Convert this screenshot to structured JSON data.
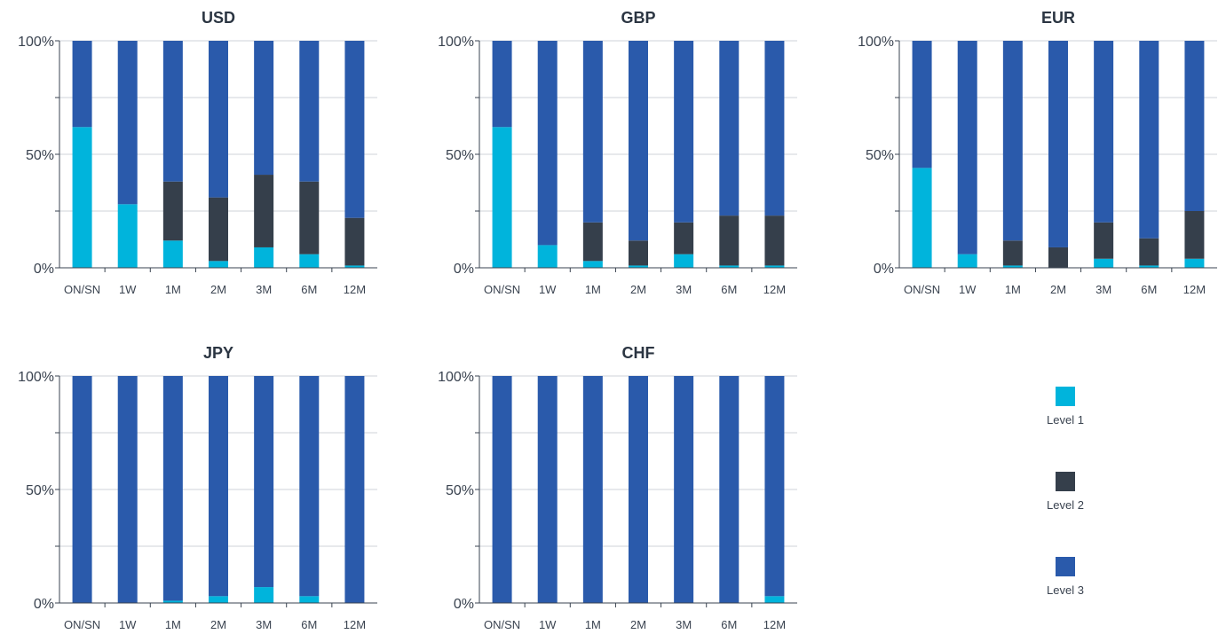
{
  "colors": {
    "level1": "#00b4dc",
    "level2": "#353f4b",
    "level3": "#2a5aab"
  },
  "legend": [
    {
      "label": "Level 1",
      "color_key": "level1"
    },
    {
      "label": "Level 2",
      "color_key": "level2"
    },
    {
      "label": "Level 3",
      "color_key": "level3"
    }
  ],
  "chart_data": [
    {
      "type": "bar",
      "stacked": true,
      "title": "USD",
      "categories": [
        "ON/SN",
        "1W",
        "1M",
        "2M",
        "3M",
        "6M",
        "12M"
      ],
      "ylim": [
        0,
        100
      ],
      "yticks": [
        "0%",
        "50%",
        "100%"
      ],
      "series": [
        {
          "name": "Level 1",
          "values": [
            62,
            28,
            12,
            3,
            9,
            6,
            1
          ]
        },
        {
          "name": "Level 2",
          "values": [
            0,
            0,
            26,
            28,
            32,
            32,
            21
          ]
        },
        {
          "name": "Level 3",
          "values": [
            38,
            72,
            62,
            69,
            59,
            62,
            78
          ]
        }
      ]
    },
    {
      "type": "bar",
      "stacked": true,
      "title": "GBP",
      "categories": [
        "ON/SN",
        "1W",
        "1M",
        "2M",
        "3M",
        "6M",
        "12M"
      ],
      "ylim": [
        0,
        100
      ],
      "yticks": [
        "0%",
        "50%",
        "100%"
      ],
      "series": [
        {
          "name": "Level 1",
          "values": [
            62,
            10,
            3,
            1,
            6,
            1,
            1
          ]
        },
        {
          "name": "Level 2",
          "values": [
            0,
            0,
            17,
            11,
            14,
            22,
            22
          ]
        },
        {
          "name": "Level 3",
          "values": [
            38,
            90,
            80,
            88,
            80,
            77,
            77
          ]
        }
      ]
    },
    {
      "type": "bar",
      "stacked": true,
      "title": "EUR",
      "categories": [
        "ON/SN",
        "1W",
        "1M",
        "2M",
        "3M",
        "6M",
        "12M"
      ],
      "ylim": [
        0,
        100
      ],
      "yticks": [
        "0%",
        "50%",
        "100%"
      ],
      "series": [
        {
          "name": "Level 1",
          "values": [
            44,
            6,
            1,
            0,
            4,
            1,
            4
          ]
        },
        {
          "name": "Level 2",
          "values": [
            0,
            0,
            11,
            9,
            16,
            12,
            21
          ]
        },
        {
          "name": "Level 3",
          "values": [
            56,
            94,
            88,
            91,
            80,
            87,
            75
          ]
        }
      ]
    },
    {
      "type": "bar",
      "stacked": true,
      "title": "JPY",
      "categories": [
        "ON/SN",
        "1W",
        "1M",
        "2M",
        "3M",
        "6M",
        "12M"
      ],
      "ylim": [
        0,
        100
      ],
      "yticks": [
        "0%",
        "50%",
        "100%"
      ],
      "series": [
        {
          "name": "Level 1",
          "values": [
            0,
            0,
            1,
            3,
            7,
            3,
            0
          ]
        },
        {
          "name": "Level 2",
          "values": [
            0,
            0,
            0,
            0,
            0,
            0,
            0
          ]
        },
        {
          "name": "Level 3",
          "values": [
            100,
            100,
            99,
            97,
            93,
            97,
            100
          ]
        }
      ]
    },
    {
      "type": "bar",
      "stacked": true,
      "title": "CHF",
      "categories": [
        "ON/SN",
        "1W",
        "1M",
        "2M",
        "3M",
        "6M",
        "12M"
      ],
      "ylim": [
        0,
        100
      ],
      "yticks": [
        "0%",
        "50%",
        "100%"
      ],
      "series": [
        {
          "name": "Level 1",
          "values": [
            0,
            0,
            0,
            0,
            0,
            0,
            3
          ]
        },
        {
          "name": "Level 2",
          "values": [
            0,
            0,
            0,
            0,
            0,
            0,
            0
          ]
        },
        {
          "name": "Level 3",
          "values": [
            100,
            100,
            100,
            100,
            100,
            100,
            97
          ]
        }
      ]
    }
  ]
}
